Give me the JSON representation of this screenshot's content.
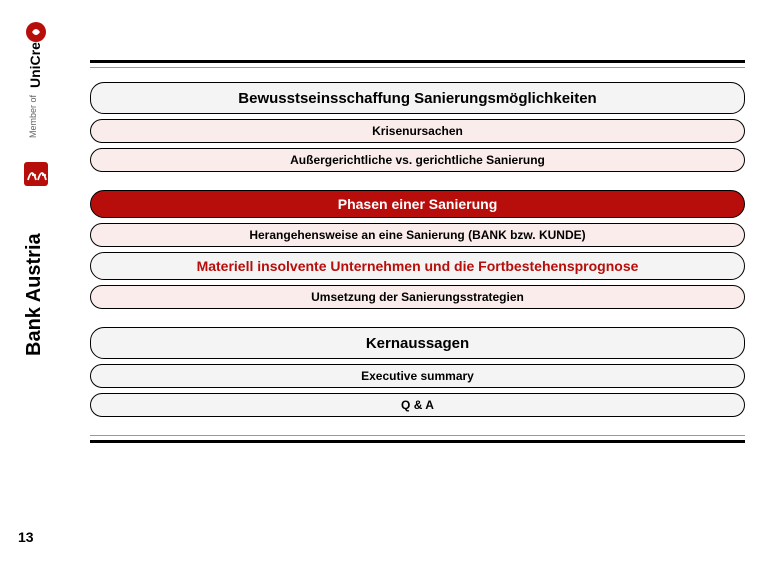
{
  "page_number": "13",
  "logos": {
    "bank_austria": "Bank Austria",
    "unicredit": "UniCredit",
    "member_of": "Member of"
  },
  "groups": [
    {
      "header": {
        "text": "Bewusstseinsschaffung  Sanierungsmöglichkeiten",
        "style": "big"
      },
      "items": [
        {
          "text": "Krisenursachen",
          "style": "small"
        },
        {
          "text": "Außergerichtliche vs. gerichtliche Sanierung",
          "style": "small"
        }
      ]
    },
    {
      "header": {
        "text": "Phasen einer Sanierung",
        "style": "red-fill-med"
      },
      "items": [
        {
          "text": "Herangehensweise an eine Sanierung (BANK bzw. KUNDE)",
          "style": "small"
        },
        {
          "text": "Materiell insolvente Unternehmen und die Fortbestehensprognose",
          "style": "med-red-text"
        },
        {
          "text": "Umsetzung der Sanierungsstrategien",
          "style": "small"
        }
      ]
    },
    {
      "header": {
        "text": "Kernaussagen",
        "style": "big"
      },
      "items": [
        {
          "text": "Executive summary",
          "style": "small-plain"
        },
        {
          "text": "Q & A",
          "style": "small-plain"
        }
      ]
    }
  ],
  "colors": {
    "brand_red": "#b70e0c",
    "box_border": "#000000",
    "box_gray": "#f4f4f4",
    "box_pink": "#fbecec"
  }
}
